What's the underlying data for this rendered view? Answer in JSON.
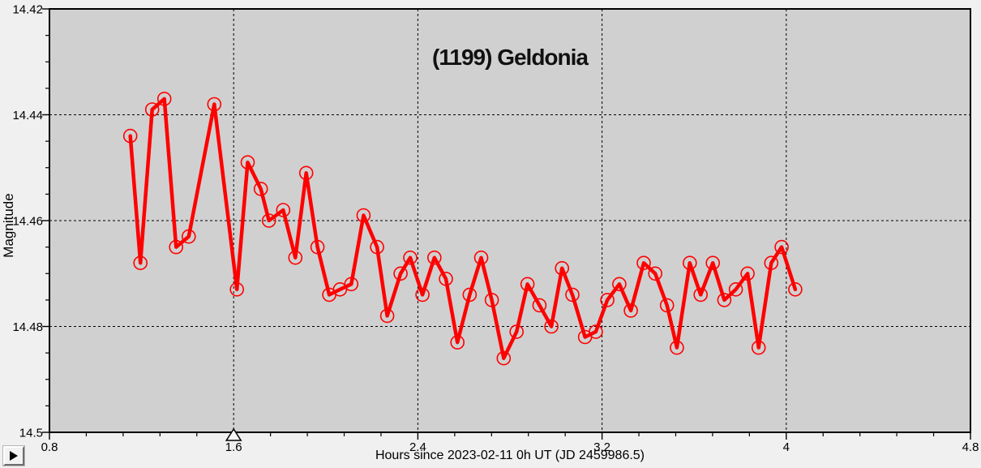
{
  "window": {
    "background_color": "#f0f0f0"
  },
  "toolbar": {
    "play_button_icon": "play-triangle"
  },
  "chart_data": {
    "type": "line",
    "title": "(1199) Geldonia",
    "xlabel": "Hours since 2023-02-11 0h UT (JD 2459986.5)",
    "ylabel": "Magnitude",
    "xlim": [
      0.8,
      4.8
    ],
    "ylim": [
      14.5,
      14.42
    ],
    "y_axis_inverted": true,
    "x_tick_values": [
      0.8,
      1.6,
      2.4,
      3.2,
      4.0,
      4.8
    ],
    "x_tick_labels": [
      "0.8",
      "1.6",
      "2.4",
      "3.2",
      "4",
      "4.8"
    ],
    "y_tick_values": [
      14.42,
      14.44,
      14.46,
      14.48,
      14.5
    ],
    "y_tick_labels": [
      "14.42",
      "14.44",
      "14.46",
      "14.48",
      "14.5"
    ],
    "x_minor_tick_step": 0.16,
    "y_minor_tick_step": 0.005,
    "grid_x": [
      1.6,
      2.4,
      3.2,
      4.0
    ],
    "grid_y": [
      14.44,
      14.46,
      14.48
    ],
    "grid_style": "dashed",
    "plot_background": "#d0d0d0",
    "border_color": "#000000",
    "line_color": "#ff0000",
    "marker": "open-circle",
    "phase_marker": {
      "x": 1.6,
      "shape": "open-triangle-up",
      "fill": "#f7f7f7"
    },
    "legend": "none",
    "points": [
      [
        1.151,
        14.444
      ],
      [
        1.195,
        14.468
      ],
      [
        1.246,
        14.439
      ],
      [
        1.299,
        14.437
      ],
      [
        1.35,
        14.465
      ],
      [
        1.405,
        14.463
      ],
      [
        1.516,
        14.438
      ],
      [
        1.614,
        14.473
      ],
      [
        1.661,
        14.449
      ],
      [
        1.718,
        14.454
      ],
      [
        1.753,
        14.46
      ],
      [
        1.815,
        14.458
      ],
      [
        1.868,
        14.467
      ],
      [
        1.915,
        14.451
      ],
      [
        1.964,
        14.465
      ],
      [
        2.015,
        14.474
      ],
      [
        2.062,
        14.473
      ],
      [
        2.111,
        14.472
      ],
      [
        2.164,
        14.459
      ],
      [
        2.223,
        14.465
      ],
      [
        2.267,
        14.478
      ],
      [
        2.325,
        14.47
      ],
      [
        2.367,
        14.467
      ],
      [
        2.42,
        14.474
      ],
      [
        2.472,
        14.467
      ],
      [
        2.522,
        14.471
      ],
      [
        2.572,
        14.483
      ],
      [
        2.625,
        14.474
      ],
      [
        2.675,
        14.467
      ],
      [
        2.721,
        14.475
      ],
      [
        2.773,
        14.486
      ],
      [
        2.829,
        14.481
      ],
      [
        2.876,
        14.472
      ],
      [
        2.928,
        14.476
      ],
      [
        2.98,
        14.48
      ],
      [
        3.026,
        14.469
      ],
      [
        3.071,
        14.474
      ],
      [
        3.126,
        14.482
      ],
      [
        3.173,
        14.481
      ],
      [
        3.223,
        14.475
      ],
      [
        3.275,
        14.472
      ],
      [
        3.325,
        14.477
      ],
      [
        3.381,
        14.468
      ],
      [
        3.431,
        14.47
      ],
      [
        3.482,
        14.476
      ],
      [
        3.525,
        14.484
      ],
      [
        3.581,
        14.468
      ],
      [
        3.628,
        14.474
      ],
      [
        3.681,
        14.468
      ],
      [
        3.731,
        14.475
      ],
      [
        3.781,
        14.473
      ],
      [
        3.832,
        14.47
      ],
      [
        3.88,
        14.484
      ],
      [
        3.935,
        14.468
      ],
      [
        3.98,
        14.465
      ],
      [
        4.039,
        14.473
      ]
    ]
  }
}
